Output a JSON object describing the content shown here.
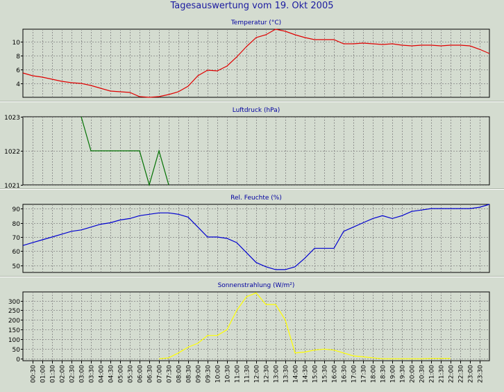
{
  "title": "Tagesauswertung vom 19. Okt 2005",
  "x_ticks": [
    "00:30",
    "01:00",
    "01:30",
    "02:00",
    "02:30",
    "03:00",
    "03:30",
    "04:00",
    "04:30",
    "05:00",
    "05:30",
    "06:00",
    "06:30",
    "07:00",
    "07:30",
    "08:00",
    "08:30",
    "09:00",
    "09:30",
    "10:00",
    "10:30",
    "11:00",
    "11:30",
    "12:00",
    "12:30",
    "13:00",
    "13:30",
    "14:00",
    "14:30",
    "15:00",
    "15:30",
    "16:00",
    "16:30",
    "17:00",
    "17:30",
    "18:00",
    "18:30",
    "19:00",
    "19:30",
    "20:00",
    "20:30",
    "21:00",
    "21:30",
    "22:00",
    "22:30",
    "23:00",
    "23:30"
  ],
  "colors": {
    "temperature": "#e00000",
    "pressure": "#007000",
    "humidity": "#0000d0",
    "radiation": "#ffff00",
    "title": "#1a1aa0",
    "panel_title": "#0000a0",
    "grid": "#808080",
    "background": "#d4dcd0"
  },
  "chart_data": [
    {
      "type": "line",
      "title": "Temperatur (°C)",
      "ylim": [
        2,
        11.8
      ],
      "yticks": [
        4,
        6,
        8,
        10
      ],
      "grid": true,
      "x": [
        "00:00",
        "00:30",
        "01:00",
        "01:30",
        "02:00",
        "02:30",
        "03:00",
        "03:30",
        "04:00",
        "04:30",
        "05:00",
        "05:30",
        "06:00",
        "06:30",
        "07:00",
        "07:30",
        "08:00",
        "08:30",
        "09:00",
        "09:30",
        "10:00",
        "10:30",
        "11:00",
        "11:30",
        "12:00",
        "12:30",
        "13:00",
        "13:30",
        "14:00",
        "14:30",
        "15:00",
        "15:30",
        "16:00",
        "16:30",
        "17:00",
        "17:30",
        "18:00",
        "18:30",
        "19:00",
        "19:30",
        "20:00",
        "20:30",
        "21:00",
        "21:30",
        "22:00",
        "22:30",
        "23:00",
        "23:30",
        "24:00"
      ],
      "series": [
        {
          "values": [
            5.5,
            5.1,
            4.9,
            4.6,
            4.3,
            4.1,
            4.0,
            3.7,
            3.3,
            2.9,
            2.8,
            2.7,
            2.1,
            2.0,
            2.1,
            2.4,
            2.8,
            3.6,
            5.1,
            5.9,
            5.8,
            6.5,
            7.8,
            9.3,
            10.6,
            11.0,
            11.8,
            11.5,
            11.0,
            10.6,
            10.3,
            10.3,
            10.3,
            9.7,
            9.7,
            9.8,
            9.7,
            9.6,
            9.7,
            9.5,
            9.4,
            9.5,
            9.5,
            9.4,
            9.5,
            9.5,
            9.4,
            8.9,
            8.3
          ]
        }
      ]
    },
    {
      "type": "line",
      "title": "Luftdruck (hPa)",
      "ylim": [
        1021,
        1023
      ],
      "yticks": [
        1021,
        1022,
        1023
      ],
      "grid": true,
      "x": [
        "03:00",
        "03:30",
        "04:00",
        "04:30",
        "05:00",
        "05:30",
        "06:00",
        "06:30",
        "07:00",
        "07:30"
      ],
      "series": [
        {
          "values": [
            1023,
            1022,
            1022,
            1022,
            1022,
            1022,
            1022,
            1021,
            1022,
            1021
          ]
        }
      ]
    },
    {
      "type": "line",
      "title": "Rel. Feuchte (%)",
      "ylim": [
        45,
        93
      ],
      "yticks": [
        50,
        60,
        70,
        80,
        90
      ],
      "grid": true,
      "x": [
        "00:00",
        "00:30",
        "01:00",
        "01:30",
        "02:00",
        "02:30",
        "03:00",
        "03:30",
        "04:00",
        "04:30",
        "05:00",
        "05:30",
        "06:00",
        "06:30",
        "07:00",
        "07:30",
        "08:00",
        "08:30",
        "09:00",
        "09:30",
        "10:00",
        "10:30",
        "11:00",
        "11:30",
        "12:00",
        "12:30",
        "13:00",
        "13:30",
        "14:00",
        "14:30",
        "15:00",
        "15:30",
        "16:00",
        "16:30",
        "17:00",
        "17:30",
        "18:00",
        "18:30",
        "19:00",
        "19:30",
        "20:00",
        "20:30",
        "21:00",
        "21:30",
        "22:00",
        "22:30",
        "23:00",
        "23:30",
        "24:00"
      ],
      "series": [
        {
          "values": [
            64,
            66,
            68,
            70,
            72,
            74,
            75,
            77,
            79,
            80,
            82,
            83,
            85,
            86,
            87,
            87,
            86,
            84,
            77,
            70,
            70,
            69,
            66,
            59,
            52,
            49,
            47,
            47,
            49,
            55,
            62,
            62,
            62,
            74,
            77,
            80,
            83,
            85,
            83,
            85,
            88,
            89,
            90,
            90,
            90,
            90,
            90,
            91,
            93
          ]
        }
      ]
    },
    {
      "type": "line",
      "title": "Sonnenstrahlung (W/m²)",
      "ylim": [
        -10,
        345
      ],
      "yticks": [
        0,
        50,
        100,
        150,
        200,
        250,
        300
      ],
      "grid": true,
      "x": [
        "07:00",
        "07:30",
        "08:00",
        "08:30",
        "09:00",
        "09:30",
        "10:00",
        "10:30",
        "11:00",
        "11:30",
        "12:00",
        "12:30",
        "13:00",
        "13:30",
        "14:00",
        "14:30",
        "15:00",
        "15:30",
        "16:00",
        "16:30",
        "17:00",
        "17:30",
        "18:00",
        "18:30",
        "19:00",
        "19:30",
        "20:00",
        "20:30",
        "21:00",
        "21:30",
        "22:00"
      ],
      "series": [
        {
          "values": [
            0,
            5,
            30,
            60,
            80,
            120,
            120,
            150,
            250,
            320,
            340,
            280,
            280,
            200,
            30,
            35,
            45,
            50,
            45,
            30,
            15,
            10,
            5,
            0,
            0,
            0,
            0,
            0,
            2,
            2,
            2
          ]
        }
      ]
    }
  ]
}
